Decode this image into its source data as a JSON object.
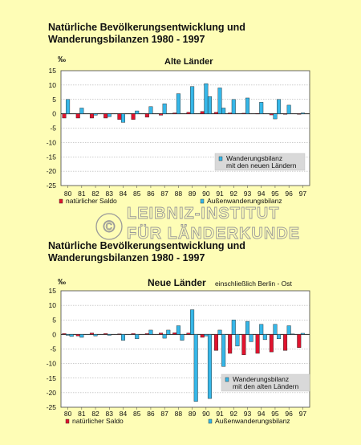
{
  "colors": {
    "background": "#FEFDB6",
    "plot": "#FFFFFF",
    "natural": "#E0132E",
    "migration": "#36B7E8",
    "box": "#D9D9D9"
  },
  "watermark": {
    "line1": "LEIBNIZ-INSTITUT",
    "line2": "FÜR LÄNDERKUNDE",
    "symbol": "©"
  },
  "chart_data": [
    {
      "type": "bar",
      "title_lines": [
        "Natürliche Bevölkerungsentwicklung und",
        "Wanderungsbilanzen 1980 - 1997"
      ],
      "subtitle": "Alte Länder",
      "subtitle_note": "",
      "unit": "‰",
      "categories": [
        "80",
        "81",
        "82",
        "83",
        "84",
        "85",
        "86",
        "87",
        "88",
        "89",
        "90",
        "91",
        "92",
        "93",
        "94",
        "95",
        "96",
        "97"
      ],
      "ylim": [
        -25,
        15
      ],
      "yticks": [
        15,
        10,
        5,
        0,
        -5,
        -10,
        -15,
        -20,
        -25
      ],
      "grid": true,
      "series": [
        {
          "name": "natürlicher Saldo",
          "values": [
            -1.5,
            -1.5,
            -1.5,
            -1.5,
            -2.0,
            -2.0,
            -1.2,
            -0.5,
            0.3,
            0.5,
            0.8,
            0.5,
            0.3,
            0.2,
            0.1,
            -0.4,
            -0.2,
            -0.2
          ]
        },
        {
          "name": "Außenwanderungsbilanz",
          "values": [
            5.0,
            2.0,
            -0.5,
            -1.0,
            -3.0,
            1.0,
            2.5,
            3.5,
            7.0,
            9.5,
            10.5,
            9.0,
            5.0,
            5.5,
            4.0,
            -1.8,
            3.0,
            0.3
          ]
        },
        {
          "name": "Wanderungsbilanz mit den neuen Ländern",
          "values": [
            0,
            0,
            0,
            0,
            0,
            0,
            0,
            0,
            0,
            0,
            6.0,
            2.0,
            0,
            0,
            0,
            5.0,
            0,
            0
          ]
        }
      ],
      "annotation": {
        "lines": [
          "Wanderungsbilanz",
          "mit den neuen Ländern"
        ]
      }
    },
    {
      "type": "bar",
      "title_lines": [
        "Natürliche Bevölkerungsentwicklung und",
        "Wanderungsbilanzen 1980 - 1997"
      ],
      "subtitle": "Neue Länder",
      "subtitle_note": "einschließlich Berlin - Ost",
      "unit": "‰",
      "categories": [
        "80",
        "81",
        "82",
        "83",
        "84",
        "85",
        "86",
        "87",
        "88",
        "89",
        "90",
        "91",
        "92",
        "93",
        "94",
        "95",
        "96",
        "97"
      ],
      "ylim": [
        -25,
        15
      ],
      "yticks": [
        15,
        10,
        5,
        0,
        -5,
        -10,
        -15,
        -20,
        -25
      ],
      "grid": true,
      "series": [
        {
          "name": "natürlicher Saldo",
          "values": [
            0.3,
            -0.5,
            0.5,
            0.3,
            0.2,
            0.3,
            0.3,
            0.5,
            0.6,
            0.5,
            -1.0,
            -5.5,
            -6.5,
            -7.0,
            -6.5,
            -6.0,
            -5.5,
            -4.5
          ]
        },
        {
          "name": "Außenwanderungsbilanz",
          "values": [
            -0.3,
            -1.0,
            -0.5,
            -0.3,
            -2.0,
            -1.5,
            1.5,
            -1.3,
            3.0,
            8.5,
            -0.5,
            1.5,
            5.0,
            4.5,
            3.5,
            3.5,
            3.0,
            0.4
          ]
        },
        {
          "name": "Wanderungsbilanz mit den alten Ländern",
          "values": [
            -0.7,
            0,
            0,
            0,
            0,
            0,
            0,
            1.5,
            -2.0,
            -23.0,
            -22.0,
            -11.0,
            -4.0,
            -2.5,
            -1.8,
            -1.5,
            0.2,
            0
          ]
        }
      ],
      "annotation": {
        "lines": [
          "Wanderungsbilanz",
          "mit den alten Ländern"
        ]
      }
    }
  ]
}
